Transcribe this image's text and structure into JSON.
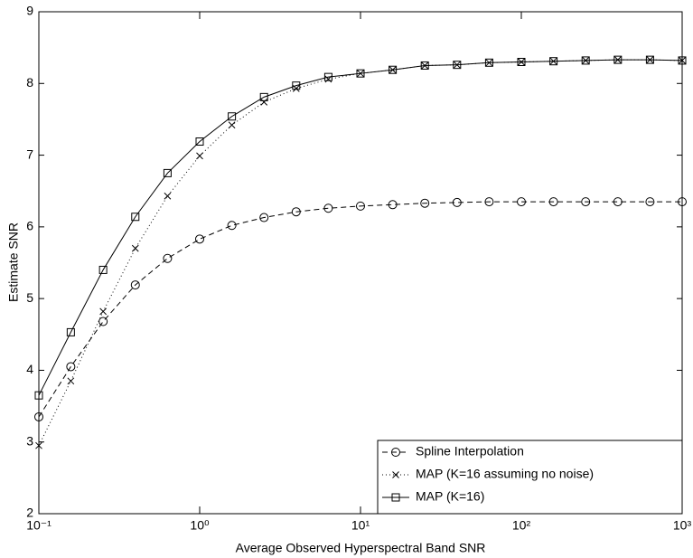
{
  "chart_data": {
    "type": "line",
    "xlabel": "Average Observed Hyperspectral Band SNR",
    "ylabel": "Estimate SNR",
    "xscale": "log",
    "xlim": [
      0.1,
      1000
    ],
    "ylim": [
      2,
      9
    ],
    "xticks": [
      {
        "value": 0.1,
        "label": "10⁻¹"
      },
      {
        "value": 1,
        "label": "10⁰"
      },
      {
        "value": 10,
        "label": "10¹"
      },
      {
        "value": 100,
        "label": "10²"
      },
      {
        "value": 1000,
        "label": "10³"
      }
    ],
    "yticks": [
      2,
      3,
      4,
      5,
      6,
      7,
      8,
      9
    ],
    "grid": false,
    "legend": "lower right",
    "x": [
      0.1,
      0.158,
      0.251,
      0.398,
      0.631,
      1,
      1.585,
      2.512,
      3.981,
      6.31,
      10,
      15.85,
      25.12,
      39.81,
      63.1,
      100,
      158.5,
      251.2,
      398.1,
      631,
      1000
    ],
    "series": [
      {
        "name": "Spline Interpolation",
        "color": "#000000",
        "marker": "circle",
        "linestyle": "dashed",
        "values": [
          3.35,
          4.05,
          4.68,
          5.19,
          5.56,
          5.83,
          6.02,
          6.13,
          6.21,
          6.26,
          6.29,
          6.31,
          6.33,
          6.34,
          6.35,
          6.35,
          6.35,
          6.35,
          6.35,
          6.35,
          6.35
        ]
      },
      {
        "name": "MAP (K=16 assuming no noise)",
        "color": "#000000",
        "marker": "x",
        "linestyle": "dotted",
        "values": [
          2.95,
          3.85,
          4.82,
          5.7,
          6.43,
          6.99,
          7.42,
          7.74,
          7.93,
          8.06,
          8.14,
          8.19,
          8.25,
          8.26,
          8.29,
          8.3,
          8.31,
          8.32,
          8.33,
          8.33,
          8.32
        ]
      },
      {
        "name": "MAP (K=16)",
        "color": "#000000",
        "marker": "square",
        "linestyle": "solid",
        "values": [
          3.65,
          4.53,
          5.4,
          6.14,
          6.75,
          7.19,
          7.54,
          7.81,
          7.97,
          8.09,
          8.14,
          8.19,
          8.25,
          8.26,
          8.29,
          8.3,
          8.31,
          8.32,
          8.33,
          8.33,
          8.32
        ]
      }
    ]
  }
}
